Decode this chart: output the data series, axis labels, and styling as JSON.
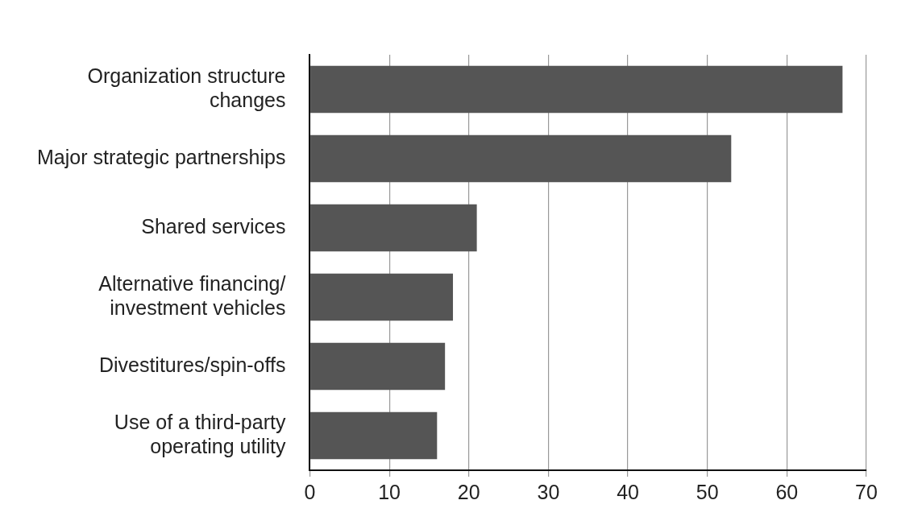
{
  "chart_data": {
    "type": "bar",
    "orientation": "horizontal",
    "categories": [
      "Organization structure\nchanges",
      "Major strategic partnerships",
      "Shared services",
      "Alternative financing/\ninvestment vehicles",
      "Divestitures/spin-offs",
      "Use of a third-party\noperating utility"
    ],
    "values": [
      67,
      53,
      21,
      18,
      17,
      16
    ],
    "color": "#555555",
    "xlim": [
      0,
      70
    ],
    "xticks": [
      0,
      10,
      20,
      30,
      40,
      50,
      60,
      70
    ],
    "grid": "x",
    "legend": false
  }
}
